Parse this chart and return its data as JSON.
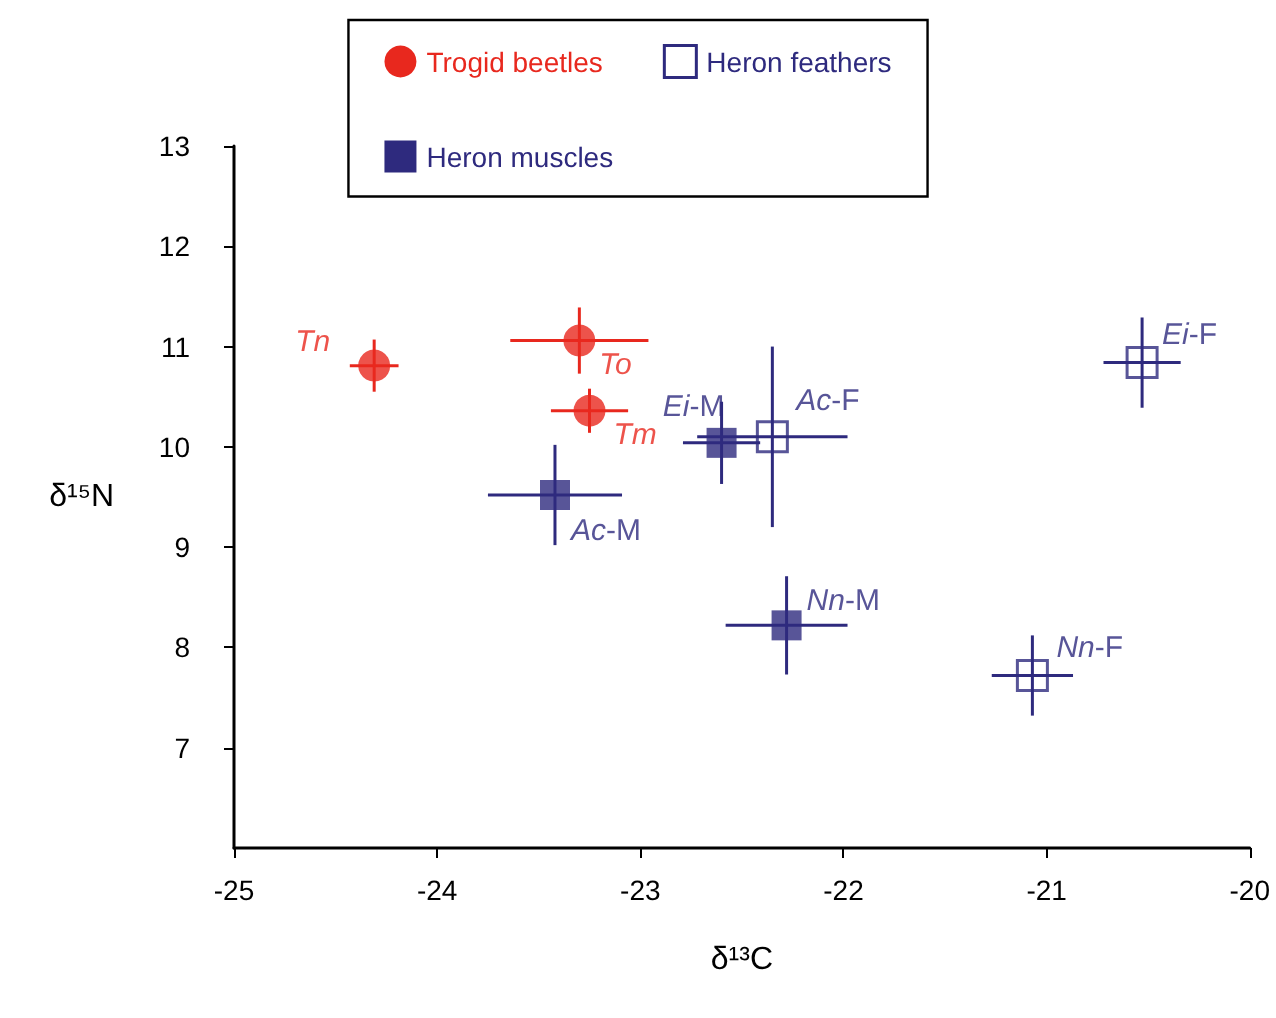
{
  "chart_data": {
    "type": "scatter",
    "xlabel": "δ¹³C",
    "ylabel": "δ¹⁵N",
    "xlim": [
      -25,
      -20
    ],
    "xticks": [
      -25,
      -24,
      -23,
      -22,
      -21,
      -20
    ],
    "ylim": [
      6,
      13
    ],
    "yticks": [
      7,
      8,
      9,
      10,
      11,
      12,
      13
    ],
    "grid": false,
    "legend": "top",
    "series": [
      {
        "name": "Trogid beetles",
        "color": "#e8281e",
        "marker": "circle",
        "x": [
          -24.31,
          -23.3,
          -23.25
        ],
        "values": [
          10.81,
          11.06,
          10.36
        ],
        "xerrors": [
          0.12,
          0.34,
          0.19
        ],
        "errors": [
          0.26,
          0.33,
          0.22
        ]
      },
      {
        "name": "Heron feathers",
        "color": "#2e2a7e",
        "marker": "square-open",
        "x": [
          -22.35,
          -20.53,
          -21.07
        ],
        "values": [
          10.1,
          10.84,
          7.72
        ],
        "xerrors": [
          0.37,
          0.19,
          0.2
        ],
        "errors": [
          0.9,
          0.45,
          0.4
        ]
      },
      {
        "name": "Heron muscles",
        "color": "#2e2a7e",
        "marker": "square",
        "x": [
          -23.42,
          -22.6,
          -22.28
        ],
        "values": [
          9.52,
          10.04,
          8.22
        ],
        "xerrors": [
          0.33,
          0.19,
          0.3
        ],
        "errors": [
          0.5,
          0.41,
          0.49
        ]
      }
    ],
    "annotations": [
      {
        "text": "Tn",
        "x": -24.31,
        "y": 10.81
      },
      {
        "text": "To",
        "x": -23.3,
        "y": 11.06
      },
      {
        "text": "Tm",
        "x": -23.25,
        "y": 10.36
      },
      {
        "text": "Ac-M",
        "x": -23.42,
        "y": 9.52
      },
      {
        "text": "Ei-M",
        "x": -22.6,
        "y": 10.04
      },
      {
        "text": "Ac-F",
        "x": -22.35,
        "y": 10.1
      },
      {
        "text": "Nn-M",
        "x": -22.28,
        "y": 8.22
      },
      {
        "text": "Ei-F",
        "x": -20.53,
        "y": 10.84
      },
      {
        "text": "Nn-F",
        "x": -21.07,
        "y": 7.72
      }
    ]
  }
}
